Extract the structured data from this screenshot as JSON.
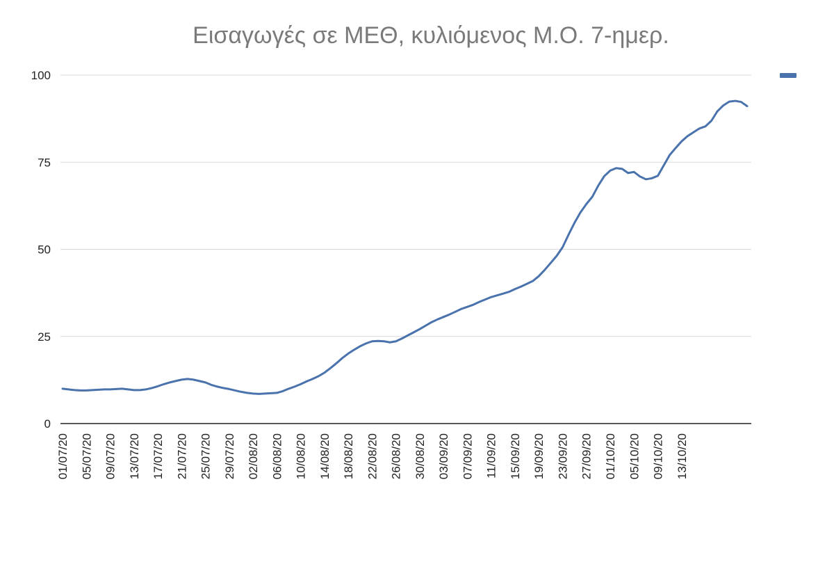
{
  "chart_data": {
    "type": "line",
    "title": "Εισαγωγές σε ΜΕΘ, κυλιόμενος Μ.Ο. 7-ημερ.",
    "xlabel": "",
    "ylabel": "",
    "ylim": [
      0,
      100
    ],
    "yticks": [
      0,
      25,
      50,
      75,
      100
    ],
    "grid": true,
    "legend": "top-right",
    "color": "#4a72ac",
    "xtick_labels": [
      "01/07/20",
      "05/07/20",
      "09/07/20",
      "13/07/20",
      "17/07/20",
      "21/07/20",
      "25/07/20",
      "29/07/20",
      "02/08/20",
      "06/08/20",
      "10/08/20",
      "14/08/20",
      "18/08/20",
      "22/08/20",
      "26/08/20",
      "30/08/20",
      "03/09/20",
      "07/09/20",
      "11/09/20",
      "15/09/20",
      "19/09/20",
      "23/09/20",
      "27/09/20",
      "01/10/20",
      "05/10/20",
      "09/10/20",
      "13/10/20"
    ],
    "x_start": "01/07/20",
    "x_end": "15/10/20",
    "series": [
      {
        "values": [
          10.0,
          9.8,
          9.6,
          9.5,
          9.5,
          9.6,
          9.7,
          9.8,
          9.8,
          9.9,
          10.0,
          9.8,
          9.6,
          9.6,
          9.8,
          10.2,
          10.7,
          11.3,
          11.8,
          12.2,
          12.6,
          12.8,
          12.6,
          12.2,
          11.8,
          11.1,
          10.6,
          10.2,
          9.9,
          9.5,
          9.1,
          8.8,
          8.6,
          8.5,
          8.6,
          8.7,
          8.8,
          9.3,
          10.0,
          10.6,
          11.3,
          12.1,
          12.8,
          13.6,
          14.6,
          15.9,
          17.3,
          18.8,
          20.1,
          21.2,
          22.2,
          23.0,
          23.6,
          23.7,
          23.6,
          23.3,
          23.6,
          24.4,
          25.3,
          26.2,
          27.1,
          28.1,
          29.1,
          29.9,
          30.6,
          31.3,
          32.1,
          32.9,
          33.5,
          34.1,
          34.9,
          35.6,
          36.3,
          36.8,
          37.3,
          37.8,
          38.6,
          39.3,
          40.1,
          40.9,
          42.3,
          44.1,
          46.1,
          48.1,
          50.6,
          54.2,
          57.6,
          60.6,
          63.0,
          65.1,
          68.3,
          71.0,
          72.6,
          73.3,
          73.1,
          71.9,
          72.2,
          70.9,
          70.1,
          70.4,
          71.1,
          74.1,
          77.1,
          79.1,
          81.0,
          82.5,
          83.6,
          84.7,
          85.3,
          86.9,
          89.6,
          91.3,
          92.4,
          92.6,
          92.3,
          91.1
        ]
      }
    ]
  }
}
